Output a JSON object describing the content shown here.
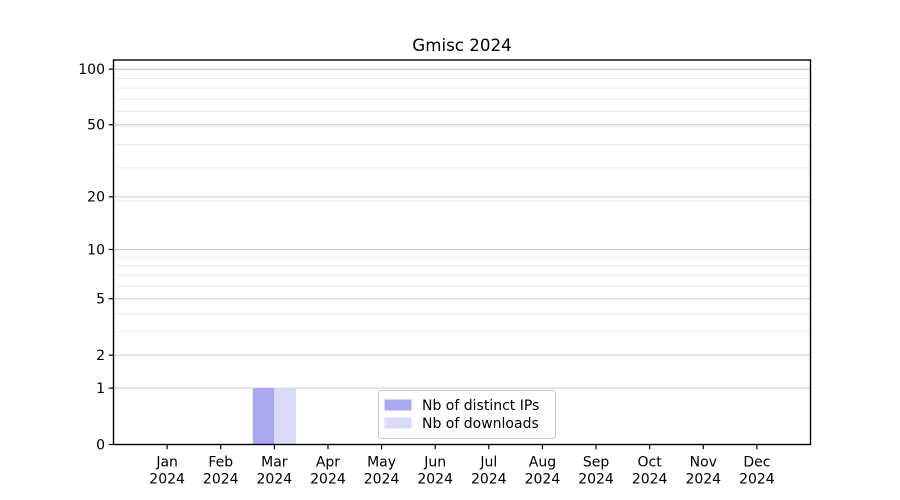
{
  "chart_data": {
    "type": "bar",
    "title": "Gmisc 2024",
    "x_tick_labels": [
      [
        "Jan",
        "2024"
      ],
      [
        "Feb",
        "2024"
      ],
      [
        "Mar",
        "2024"
      ],
      [
        "Apr",
        "2024"
      ],
      [
        "May",
        "2024"
      ],
      [
        "Jun",
        "2024"
      ],
      [
        "Jul",
        "2024"
      ],
      [
        "Aug",
        "2024"
      ],
      [
        "Sep",
        "2024"
      ],
      [
        "Oct",
        "2024"
      ],
      [
        "Nov",
        "2024"
      ],
      [
        "Dec",
        "2024"
      ]
    ],
    "y_scale": "log1p",
    "y_major_ticks": [
      0,
      1,
      2,
      5,
      10,
      20,
      50,
      100
    ],
    "y_minor_gridlines": [
      3,
      4,
      6,
      7,
      8,
      9,
      19,
      29,
      39,
      49,
      59,
      69,
      79,
      89,
      99
    ],
    "ylim": [
      0,
      112
    ],
    "series": [
      {
        "name": "Nb of distinct IPs",
        "color": "#a9a9f2",
        "values": [
          0,
          0,
          1,
          0,
          0,
          0,
          0,
          0,
          0,
          0,
          0,
          0
        ]
      },
      {
        "name": "Nb of downloads",
        "color": "#dadaf8",
        "values": [
          0,
          0,
          1,
          0,
          0,
          0,
          0,
          0,
          0,
          0,
          0,
          0
        ]
      }
    ],
    "legend": {
      "position": "lower-center"
    },
    "colors": {
      "axis": "#000000",
      "grid_major": "#c9c9c9",
      "grid_minor": "#ebebeb",
      "legend_border": "#cccccc",
      "background": "#ffffff"
    }
  }
}
